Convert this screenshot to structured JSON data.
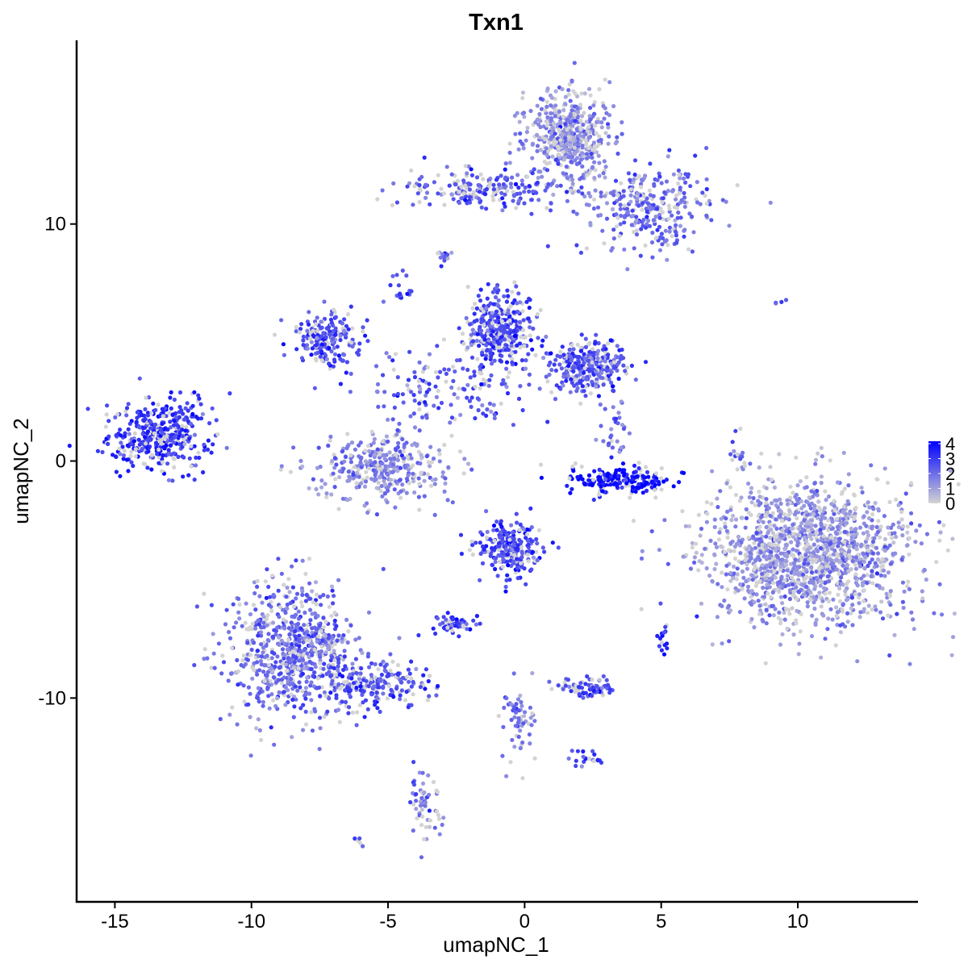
{
  "chart_data": {
    "type": "scatter",
    "title": "Txn1",
    "xlabel": "umapNC_1",
    "ylabel": "umapNC_2",
    "xlim": [
      -16.4,
      14.4
    ],
    "ylim": [
      -18.6,
      17.75
    ],
    "xticks": [
      -15,
      -10,
      -5,
      0,
      5,
      10
    ],
    "yticks": [
      -10,
      0,
      10
    ],
    "grid": false,
    "legend": {
      "placement": "right",
      "type": "colorbar",
      "range": [
        0,
        4
      ],
      "labels": [
        "4",
        "3",
        "2",
        "1",
        "0"
      ],
      "low_color": "#d3d3d3",
      "high_color": "#0000ff"
    },
    "clusters": [
      {
        "center": [
          -13.4,
          1.1
        ],
        "sd": [
          0.9,
          0.75
        ],
        "n": 400,
        "mean_expression": 3.0
      },
      {
        "center": [
          1.6,
          13.7
        ],
        "sd": [
          0.8,
          1.0
        ],
        "n": 500,
        "mean_expression": 1.4
      },
      {
        "center": [
          4.5,
          10.7
        ],
        "sd": [
          1.2,
          0.9
        ],
        "n": 300,
        "mean_expression": 2.0
      },
      {
        "center": [
          -1.5,
          11.5
        ],
        "sd": [
          1.5,
          0.4
        ],
        "n": 200,
        "mean_expression": 2.3
      },
      {
        "center": [
          -3.0,
          8.7
        ],
        "sd": [
          0.15,
          0.15
        ],
        "n": 15,
        "mean_expression": 2.2
      },
      {
        "center": [
          -4.6,
          7.2
        ],
        "sd": [
          0.2,
          0.3
        ],
        "n": 20,
        "mean_expression": 2.5
      },
      {
        "center": [
          -7.3,
          5.2
        ],
        "sd": [
          0.6,
          0.6
        ],
        "n": 200,
        "mean_expression": 2.5
      },
      {
        "center": [
          -0.9,
          5.5
        ],
        "sd": [
          0.6,
          0.8
        ],
        "n": 350,
        "mean_expression": 2.6
      },
      {
        "center": [
          2.3,
          4.0
        ],
        "sd": [
          0.7,
          0.5
        ],
        "n": 300,
        "mean_expression": 2.5
      },
      {
        "center": [
          -3.0,
          3.0
        ],
        "sd": [
          1.5,
          1.0
        ],
        "n": 150,
        "mean_expression": 2.2
      },
      {
        "center": [
          -5.2,
          -0.2
        ],
        "sd": [
          1.2,
          0.7
        ],
        "n": 350,
        "mean_expression": 1.5
      },
      {
        "center": [
          3.5,
          -0.8
        ],
        "sd": [
          0.9,
          0.3
        ],
        "n": 200,
        "mean_expression": 3.8
      },
      {
        "center": [
          10.5,
          -3.9
        ],
        "sd": [
          1.9,
          1.5
        ],
        "n": 1500,
        "mean_expression": 1.3
      },
      {
        "center": [
          -0.6,
          -3.7
        ],
        "sd": [
          0.6,
          0.6
        ],
        "n": 250,
        "mean_expression": 2.7
      },
      {
        "center": [
          -8.5,
          -8.0
        ],
        "sd": [
          1.2,
          1.4
        ],
        "n": 700,
        "mean_expression": 2.0
      },
      {
        "center": [
          -5.5,
          -9.4
        ],
        "sd": [
          1.2,
          0.5
        ],
        "n": 200,
        "mean_expression": 2.6
      },
      {
        "center": [
          -2.5,
          -6.9
        ],
        "sd": [
          0.4,
          0.2
        ],
        "n": 60,
        "mean_expression": 2.8
      },
      {
        "center": [
          2.4,
          -9.6
        ],
        "sd": [
          0.5,
          0.2
        ],
        "n": 80,
        "mean_expression": 2.5
      },
      {
        "center": [
          -3.6,
          -14.5
        ],
        "sd": [
          0.3,
          0.8
        ],
        "n": 60,
        "mean_expression": 1.8
      },
      {
        "center": [
          -0.2,
          -11.0
        ],
        "sd": [
          0.3,
          1.0
        ],
        "n": 60,
        "mean_expression": 1.8
      },
      {
        "center": [
          2.3,
          -12.5
        ],
        "sd": [
          0.3,
          0.2
        ],
        "n": 20,
        "mean_expression": 2.5
      },
      {
        "center": [
          5.1,
          -7.5
        ],
        "sd": [
          0.1,
          0.3
        ],
        "n": 15,
        "mean_expression": 3.5
      },
      {
        "center": [
          3.2,
          0.9
        ],
        "sd": [
          0.3,
          0.6
        ],
        "n": 30,
        "mean_expression": 2.0
      },
      {
        "center": [
          7.8,
          0.3
        ],
        "sd": [
          0.2,
          0.6
        ],
        "n": 15,
        "mean_expression": 2.3
      },
      {
        "center": [
          -6.1,
          -16.0
        ],
        "sd": [
          0.1,
          0.1
        ],
        "n": 5,
        "mean_expression": 2.5
      },
      {
        "center": [
          9.5,
          6.7
        ],
        "sd": [
          0.2,
          0.05
        ],
        "n": 4,
        "mean_expression": 2.5
      },
      {
        "center": [
          -12.0,
          2.6
        ],
        "sd": [
          0.2,
          0.3
        ],
        "n": 8,
        "mean_expression": 3.0
      }
    ]
  }
}
